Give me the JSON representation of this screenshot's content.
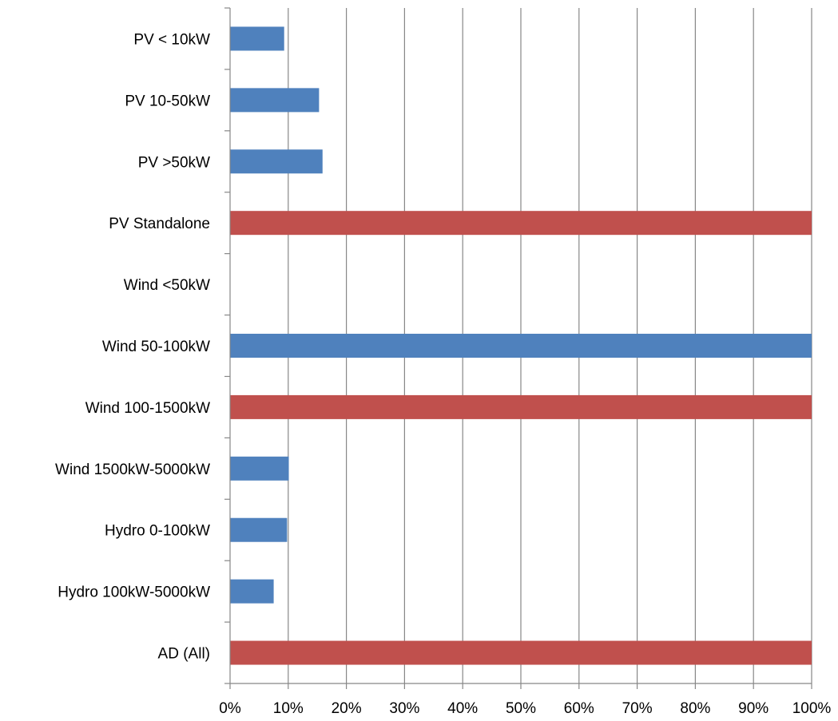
{
  "chart_data": {
    "type": "bar",
    "orientation": "horizontal",
    "categories": [
      "PV < 10kW",
      "PV 10-50kW",
      "PV >50kW",
      "PV Standalone",
      "Wind <50kW",
      "Wind 50-100kW",
      "Wind 100-1500kW",
      "Wind 1500kW-5000kW",
      "Hydro 0-100kW",
      "Hydro 100kW-5000kW",
      "AD (All)"
    ],
    "values": [
      9.3,
      15.3,
      15.9,
      100,
      0,
      100,
      100,
      10.1,
      9.8,
      7.5,
      100
    ],
    "bar_colors": [
      "#4F81BD",
      "#4F81BD",
      "#4F81BD",
      "#C0504D",
      "#4F81BD",
      "#4F81BD",
      "#C0504D",
      "#4F81BD",
      "#4F81BD",
      "#4F81BD",
      "#C0504D"
    ],
    "x_ticks": [
      "0%",
      "10%",
      "20%",
      "30%",
      "40%",
      "50%",
      "60%",
      "70%",
      "80%",
      "90%",
      "100%"
    ],
    "xlim": [
      0,
      100
    ],
    "x_unit": "%",
    "grid": "vertical",
    "legend": "none",
    "title": "",
    "xlabel": "",
    "ylabel": ""
  },
  "colors": {
    "blue": "#4F81BD",
    "red": "#C0504D",
    "grid": "#878787",
    "axis": "#878787"
  }
}
